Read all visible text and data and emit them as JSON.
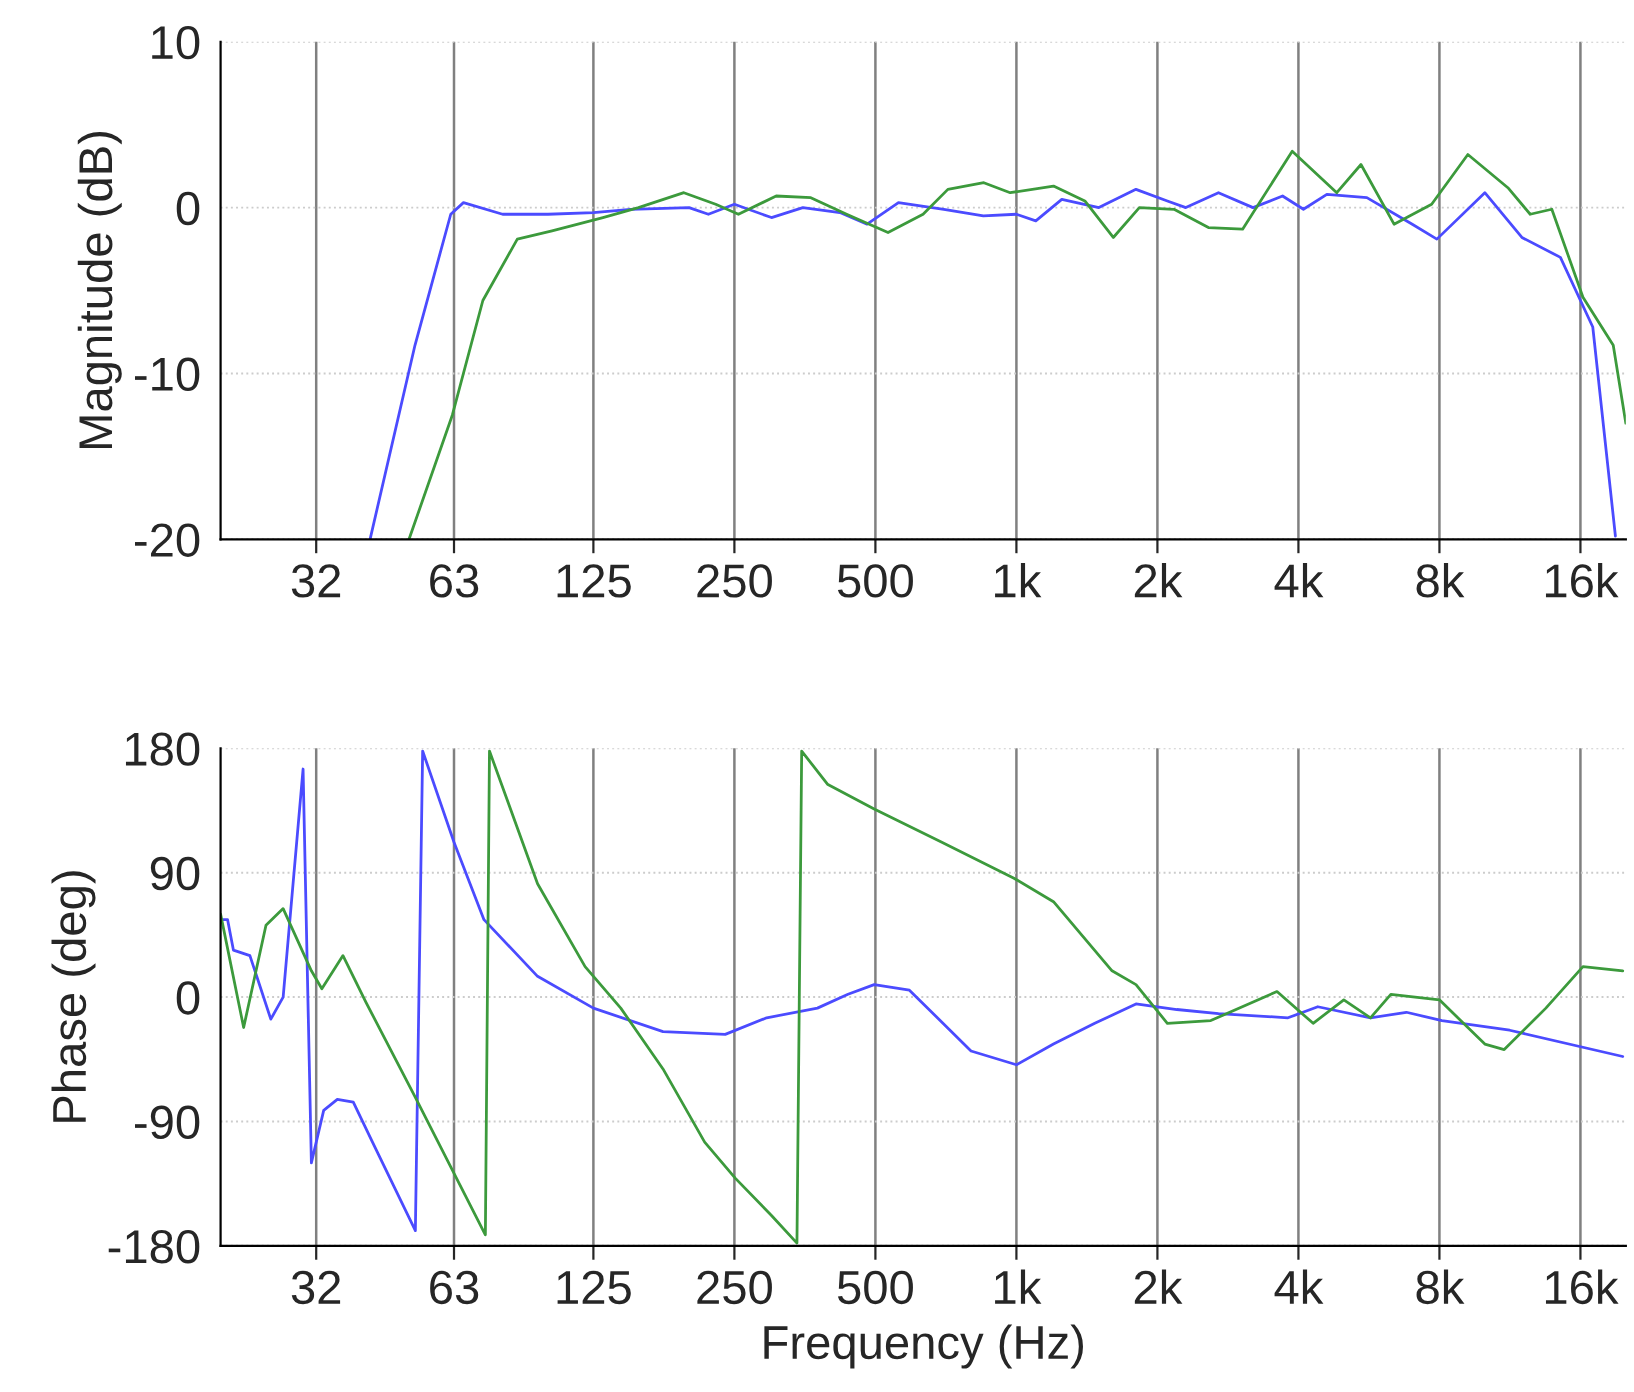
{
  "chart_data": [
    {
      "type": "line",
      "ylabel": "Magnitude (dB)",
      "log": "x",
      "grid": true,
      "xlim": [
        20,
        20000
      ],
      "ylim": [
        -20,
        10
      ],
      "yticks": [
        -20,
        -10,
        0,
        10
      ],
      "xticks": [
        32,
        63,
        125,
        250,
        500,
        {
          "value": 1000,
          "label": "1k"
        },
        {
          "value": 2000,
          "label": "2k"
        },
        {
          "value": 4000,
          "label": "4k"
        },
        {
          "value": 8000,
          "label": "8k"
        },
        {
          "value": 16000,
          "label": "16k"
        }
      ],
      "series": [
        {
          "color": "#4b4bff",
          "x": [
            41.7,
            52,
            62,
            66,
            80,
            100,
            125,
            150,
            200,
            220,
            250,
            300,
            350,
            420,
            480,
            560,
            700,
            850,
            1000,
            1100,
            1250,
            1500,
            1800,
            2100,
            2300,
            2700,
            3200,
            3700,
            4100,
            4600,
            5600,
            7000,
            7900,
            10000,
            12000,
            14500,
            17000,
            19000
          ],
          "values": [
            -20,
            -8.3,
            -0.4,
            0.3,
            -0.4,
            -0.4,
            -0.3,
            -0.1,
            0,
            -0.4,
            0.2,
            -0.6,
            0,
            -0.3,
            -1,
            0.3,
            -0.1,
            -0.5,
            -0.4,
            -0.8,
            0.5,
            0,
            1.1,
            0.4,
            0,
            0.9,
            0,
            0.7,
            -0.1,
            0.8,
            0.6,
            -1,
            -1.9,
            0.9,
            -1.8,
            -3,
            -7.2,
            -19.8
          ]
        },
        {
          "color": "#3c9a3c",
          "x": [
            50.5,
            62.5,
            72.6,
            86,
            102,
            131,
            156,
            195,
            228,
            255,
            307,
            364,
            434,
            532,
            632,
            714,
            852,
            970,
            1200,
            1400,
            1610,
            1830,
            2170,
            2570,
            3040,
            3880,
            4830,
            5440,
            6400,
            7700,
            9200,
            11200,
            12500,
            13900,
            16200,
            18800,
            20000
          ],
          "values": [
            -20,
            -12.5,
            -5.6,
            -1.9,
            -1.4,
            -0.6,
            0,
            0.9,
            0.2,
            -0.4,
            0.7,
            0.6,
            -0.4,
            -1.5,
            -0.4,
            1.1,
            1.5,
            0.9,
            1.3,
            0.4,
            -1.8,
            0,
            -0.1,
            -1.2,
            -1.3,
            3.4,
            0.9,
            2.6,
            -1,
            0.2,
            3.2,
            1.2,
            -0.4,
            -0.1,
            -5.4,
            -8.3,
            -13
          ]
        }
      ]
    },
    {
      "type": "line",
      "ylabel": "Phase (deg)",
      "xlabel": "Frequency (Hz)",
      "log": "x",
      "grid": true,
      "xlim": [
        20,
        20000
      ],
      "ylim": [
        -180,
        180
      ],
      "yticks": [
        -180,
        -90,
        0,
        90,
        180
      ],
      "xticks": [
        32,
        63,
        125,
        250,
        500,
        {
          "value": 1000,
          "label": "1k"
        },
        {
          "value": 2000,
          "label": "2k"
        },
        {
          "value": 4000,
          "label": "4k"
        },
        {
          "value": 8000,
          "label": "8k"
        },
        {
          "value": 16000,
          "label": "16k"
        }
      ],
      "series": [
        {
          "color": "#4b4bff",
          "x": [
            20,
            20.7,
            21.3,
            23.1,
            25.6,
            27.2,
            30,
            31.25,
            33.2,
            35.5,
            38.4,
            42.2,
            52.1,
            54,
            63,
            73,
            95,
            125,
            176,
            239,
            293,
            376,
            437,
            497,
            591,
            800,
            1000,
            1200,
            1470,
            1800,
            2200,
            2700,
            3800,
            4400,
            5700,
            6800,
            8100,
            11300,
            19700
          ],
          "values": [
            56,
            56,
            34,
            30,
            -16,
            0,
            165,
            -120,
            -82,
            -74,
            -76,
            -105,
            -169,
            178,
            112,
            56,
            15,
            -8,
            -25,
            -27,
            -15,
            -8,
            2,
            9,
            5,
            -39,
            -49,
            -34,
            -19,
            -5,
            -9,
            -12,
            -15,
            -7,
            -15,
            -11,
            -17,
            -24,
            -43
          ]
        },
        {
          "color": "#3c9a3c",
          "x": [
            20,
            22.4,
            25,
            27.2,
            31.25,
            32.9,
            36.5,
            40.9,
            51.8,
            73.5,
            75,
            95,
            120,
            143,
            176,
            216,
            251,
            300,
            340,
            348,
            395,
            497,
            693,
            988,
            1200,
            1600,
            1800,
            2100,
            2600,
            3600,
            4300,
            5000,
            5700,
            6300,
            8000,
            10000,
            11000,
            13500,
            16200,
            19700
          ],
          "values": [
            60,
            -22,
            52,
            64,
            19,
            6,
            30,
            -4,
            -71,
            -172,
            178,
            82,
            22,
            -8,
            -52,
            -105,
            -131,
            -158,
            -178,
            178,
            154,
            136,
            112,
            86,
            69,
            19,
            9,
            -19,
            -17,
            4,
            -19,
            -2,
            -15,
            2,
            -2,
            -34,
            -38,
            -8,
            22,
            19
          ]
        }
      ]
    }
  ]
}
